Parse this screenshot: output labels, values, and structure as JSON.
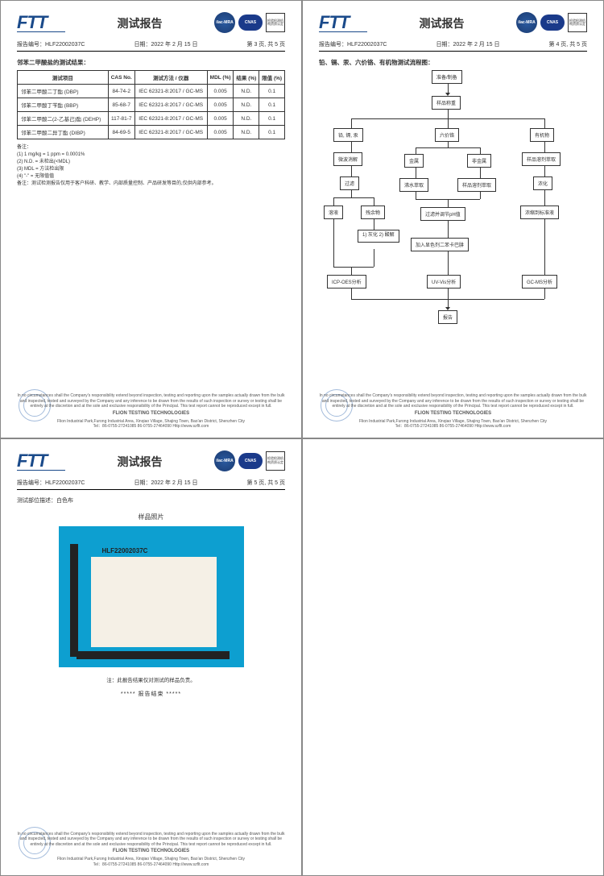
{
  "common": {
    "logo_text": "FTT",
    "title": "测试报告",
    "report_no_label": "报告编号：",
    "report_no": "HLF22002037C",
    "date_label": "日期：",
    "date": "2022 年 2 月 15 日",
    "badge_ilac": "ilac-MRA",
    "badge_cnas": "CNAS",
    "badge_cn": "检验检测机构资质认定",
    "footer_disclaimer": "In no circumstances shall the Company's responsibility extend beyond inspection, testing and reporting upon the samples actually drawn from the bulk and inspected, tested and surveyed by the Company and any inference to be drawn from the results of such inspection or survey or testing shall be entirely at the discretion and at the sole and exclusive responsibility of the Principal. This test report cannot be reproduced except in full.",
    "footer_company": "FLION TESTING TECHNOLOGIES",
    "footer_addr": "Flion Industrial Park,Furong Industrial Area, Xinqiao Village, Shajing Town, Bao'an District, Shenzhen City",
    "footer_tel": "Tel：86-0755-27241085   86-0755-27464090   Http://www.szflt.com"
  },
  "page1": {
    "page_info": "第 3 页, 共 5 页",
    "section": "邻苯二甲酸盐的测试结果：",
    "columns": [
      "测试项目",
      "CAS No.",
      "测试方法 / 仪器",
      "MDL (%)",
      "结果 (%)",
      "限值 (%)"
    ],
    "rows": [
      [
        "邻苯二甲酸二丁酯 (DBP)",
        "84-74-2",
        "IEC 62321-8:2017 / GC-MS",
        "0.005",
        "N.D.",
        "0.1"
      ],
      [
        "邻苯二甲酸丁苄酯 (BBP)",
        "85-68-7",
        "IEC 62321-8:2017 / GC-MS",
        "0.005",
        "N.D.",
        "0.1"
      ],
      [
        "邻苯二甲酸二(2-乙基己)酯 (DEHP)",
        "117-81-7",
        "IEC 62321-8:2017 / GC-MS",
        "0.005",
        "N.D.",
        "0.1"
      ],
      [
        "邻苯二甲酸二异丁酯 (DIBP)",
        "84-69-5",
        "IEC 62321-8:2017 / GC-MS",
        "0.005",
        "N.D.",
        "0.1"
      ]
    ],
    "notes_title": "备注：",
    "notes": [
      "(1) 1 mg/kg = 1 ppm = 0.0001%",
      "(2) N.D. = 未检出(<MDL)",
      "(3) MDL = 方法检出限",
      "(4) \"-\" = 无限值值"
    ],
    "warn": "备注：测试检测报告仅用于客户科研、教学、内部质量控制、产品研发等目的,仅供内部参考。"
  },
  "page2": {
    "page_info": "第 4 页, 共 5 页",
    "section": "铅、镉、汞、六价铬、有机物测试流程图：",
    "boxes": {
      "b1": "准备/制备",
      "b2": "样品称重",
      "b3": "铅, 镉, 汞",
      "b4": "六价铬",
      "b5": "有机物",
      "b6": "微波消解",
      "b7": "金属",
      "b8": "非金属",
      "b9": "样品溶剂萃取",
      "b10": "过滤",
      "b11": "沸水萃取",
      "b12": "样品溶剂萃取",
      "b13": "浓化",
      "b14": "溶液",
      "b15": "残余物",
      "b16": "过滤并调节pH值",
      "b17": "浓缩到标准液",
      "b18": "1) 灰化 2) 酸解",
      "b19": "加入显色剂二苯卡巴肼",
      "b20": "ICP-OES分析",
      "b21": "UV-Vis分析",
      "b22": "GC-MS分析",
      "b23": "报告"
    }
  },
  "page3": {
    "page_info": "第 5 页, 共 5 页",
    "desc_label": "测试部位描述：",
    "desc": "白色布",
    "photo_title": "样品照片",
    "sample_id": "HLF22002037C",
    "caption": "注：此报告结果仅对测试的样品负责。",
    "end": "***** 报告结束 *****"
  }
}
